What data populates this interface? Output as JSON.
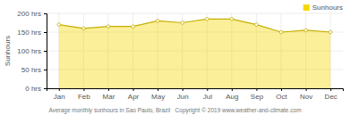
{
  "chart_data": {
    "type": "area",
    "categories": [
      "Jan",
      "Feb",
      "Mar",
      "Apr",
      "May",
      "Jun",
      "Jul",
      "Aug",
      "Sep",
      "Oct",
      "Nov",
      "Dec"
    ],
    "series": [
      {
        "name": "Sunhours",
        "color": "#F5D800",
        "values": [
          170,
          160,
          165,
          165,
          180,
          175,
          185,
          185,
          170,
          150,
          155,
          150
        ]
      }
    ],
    "ylabel": "Sunhours",
    "caption": "Average monthly sunhours in Sao Paulo, Brazil   Copyright © 2019 www.weather-and-climate.com",
    "ylim": [
      0,
      200
    ],
    "yticks": [
      {
        "value": 0,
        "label": "0 hrs"
      },
      {
        "value": 50,
        "label": "50 hrs"
      },
      {
        "value": 100,
        "label": "100 hrs"
      },
      {
        "value": 150,
        "label": "150 hrs"
      },
      {
        "value": 200,
        "label": "200 hrs"
      }
    ],
    "grid": true,
    "legend": "upper right",
    "marker": "circle"
  }
}
